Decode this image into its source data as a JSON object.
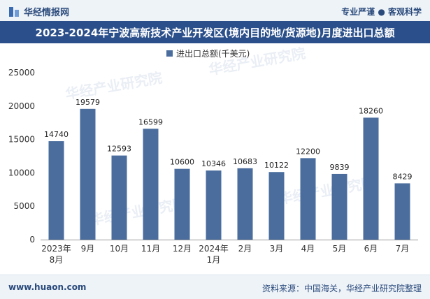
{
  "header": {
    "brand": "华经情报网",
    "slogan": "专业严谨 ● 客观科学"
  },
  "chart_data": {
    "type": "bar",
    "title": "2023-2024年宁波高新技术产业开发区(境内目的地/货源地)月度进出口总额",
    "legend": "进出口总额(千美元)",
    "legend_position": "top",
    "categories": [
      "2023年\n8月",
      "9月",
      "10月",
      "11月",
      "12月",
      "2024年\n1月",
      "2月",
      "3月",
      "4月",
      "5月",
      "6月",
      "7月"
    ],
    "series": [
      {
        "name": "进出口总额(千美元)",
        "values": [
          14740,
          19579,
          12593,
          16599,
          10600,
          10346,
          10683,
          10122,
          12200,
          9839,
          18260,
          8429
        ],
        "color": "#4a6d9e"
      }
    ],
    "yticks": [
      0,
      5000,
      10000,
      15000,
      20000,
      25000
    ],
    "ylim": [
      0,
      25000
    ],
    "grid": false
  },
  "footer": {
    "website": "www.huaon.com",
    "source": "资料来源：中国海关，华经产业研究院整理"
  },
  "watermark": "华经产业研究院 www.huaon.com"
}
